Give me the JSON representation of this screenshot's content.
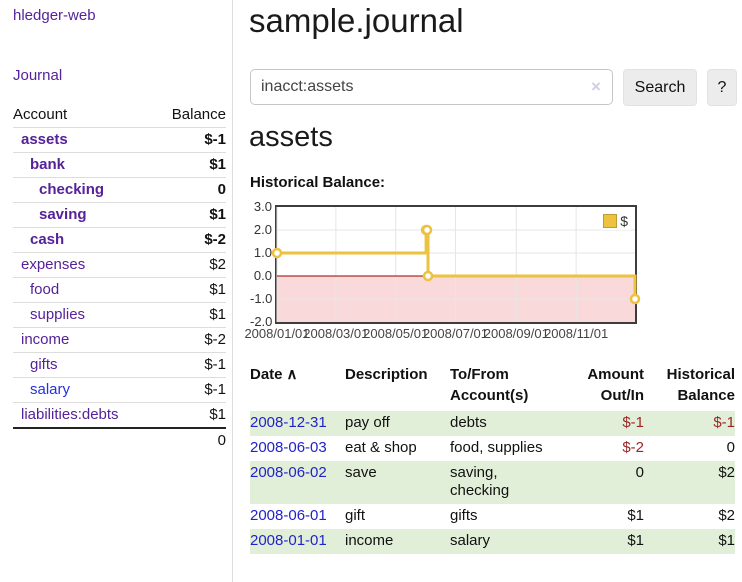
{
  "app": {
    "brand": "hledger-web",
    "nav_journal": "Journal"
  },
  "sidebar": {
    "header": {
      "account": "Account",
      "balance": "Balance"
    },
    "accounts": [
      {
        "name": "assets",
        "balance": "$-1",
        "depth": 1,
        "bold": true,
        "neg": "dark"
      },
      {
        "name": "bank",
        "balance": "$1",
        "depth": 2,
        "bold": true
      },
      {
        "name": "checking",
        "balance": "0",
        "depth": 3,
        "bold": true
      },
      {
        "name": "saving",
        "balance": "$1",
        "depth": 3,
        "bold": true
      },
      {
        "name": "cash",
        "balance": "$-2",
        "depth": 2,
        "bold": true,
        "neg": "dark"
      },
      {
        "name": "expenses",
        "balance": "$2",
        "depth": 1
      },
      {
        "name": "food",
        "balance": "$1",
        "depth": 2
      },
      {
        "name": "supplies",
        "balance": "$1",
        "depth": 2
      },
      {
        "name": "income",
        "balance": "$-2",
        "depth": 1,
        "neg": "light"
      },
      {
        "name": "gifts",
        "balance": "$-1",
        "depth": 2,
        "neg": "light"
      },
      {
        "name": "salary",
        "balance": "$-1",
        "depth": 2,
        "neg": "light",
        "unvisited": true
      },
      {
        "name": "liabilities:debts",
        "balance": "$1",
        "depth": 1
      }
    ],
    "total": "0"
  },
  "main": {
    "title": "sample.journal",
    "search": {
      "value": "inacct:assets",
      "clear_icon": "×",
      "button": "Search",
      "help_button": "?"
    },
    "account_heading": "assets",
    "chart_label": "Historical Balance:"
  },
  "chart_data": {
    "type": "line",
    "step": true,
    "title": "Historical Balance",
    "series": [
      {
        "name": "$",
        "points": [
          [
            "2008-01-01",
            1
          ],
          [
            "2008-06-01",
            2
          ],
          [
            "2008-06-02",
            2
          ],
          [
            "2008-06-03",
            0
          ],
          [
            "2008-12-31",
            -1
          ]
        ]
      }
    ],
    "x_range": [
      "2008-01-01",
      "2008-12-31"
    ],
    "x_ticks": [
      "2008/01/01",
      "2008/03/01",
      "2008/05/01",
      "2008/07/01",
      "2008/09/01",
      "2008/11/01"
    ],
    "y_ticks": [
      3.0,
      2.0,
      1.0,
      0.0,
      -1.0,
      -2.0
    ],
    "ylim": [
      -2,
      3
    ],
    "grid": true,
    "legend": {
      "label": "$",
      "position": "top-right"
    },
    "colors": {
      "line": "#edc240",
      "marker_fill": "#ffffff",
      "negative_fill": "#f9d9d9",
      "zero_line": "#990000",
      "grid": "#e6e6e6"
    }
  },
  "register": {
    "columns": [
      "Date",
      "Description",
      "To/From Account(s)",
      "Amount Out/In",
      "Historical Balance"
    ],
    "sort_icon": "∧",
    "rows": [
      {
        "date": "2008-12-31",
        "description": "pay off",
        "accounts": "debts",
        "amount": "$-1",
        "balance": "$-1"
      },
      {
        "date": "2008-06-03",
        "description": "eat & shop",
        "accounts": "food, supplies",
        "amount": "$-2",
        "balance": "0"
      },
      {
        "date": "2008-06-02",
        "description": "save",
        "accounts": "saving, checking",
        "amount": "0",
        "balance": "$2"
      },
      {
        "date": "2008-06-01",
        "description": "gift",
        "accounts": "gifts",
        "amount": "$1",
        "balance": "$2"
      },
      {
        "date": "2008-01-01",
        "description": "income",
        "accounts": "salary",
        "amount": "$1",
        "balance": "$1"
      }
    ]
  },
  "colors": {
    "link_purple": "#552299",
    "link_blue": "#2222cc",
    "negative_dark": "#962020",
    "negative_light": "#c46a6a",
    "row_green": "#e2efd8"
  }
}
